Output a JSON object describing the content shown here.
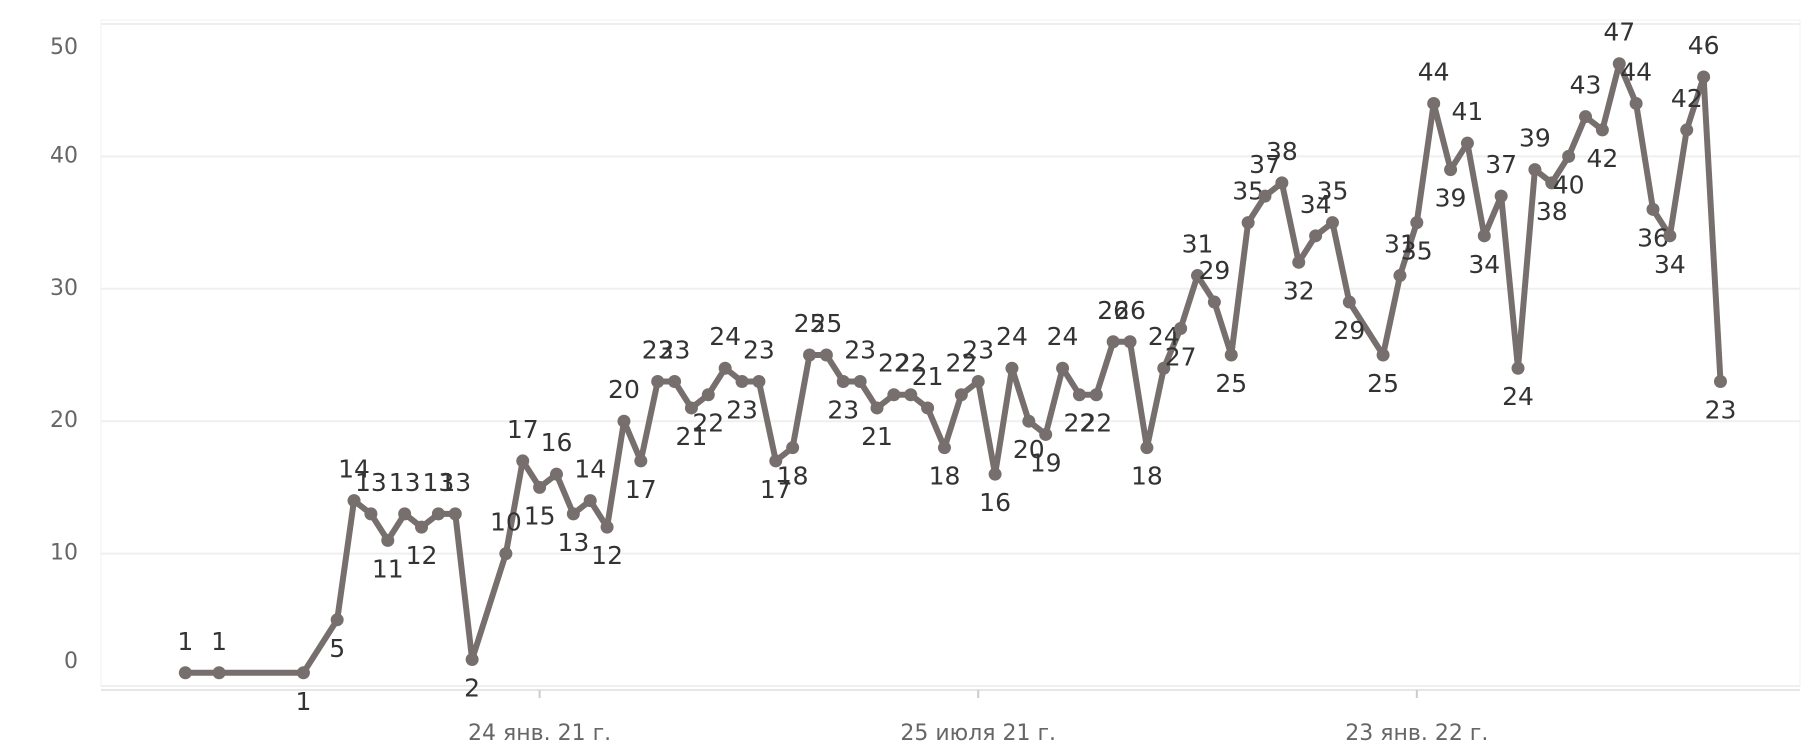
{
  "chart_data": {
    "type": "line",
    "x": [
      "2020-08-30",
      "2020-09-13",
      "2020-10-18",
      "2020-11-01",
      "2020-11-08",
      "2020-11-15",
      "2020-11-22",
      "2020-11-29",
      "2020-12-06",
      "2020-12-13",
      "2020-12-20",
      "2020-12-27",
      "2021-01-10",
      "2021-01-17",
      "2021-01-24",
      "2021-01-31",
      "2021-02-07",
      "2021-02-14",
      "2021-02-21",
      "2021-02-28",
      "2021-03-07",
      "2021-03-14",
      "2021-03-21",
      "2021-03-28",
      "2021-04-04",
      "2021-04-11",
      "2021-04-18",
      "2021-04-25",
      "2021-05-02",
      "2021-05-09",
      "2021-05-16",
      "2021-05-23",
      "2021-05-30",
      "2021-06-06",
      "2021-06-13",
      "2021-06-20",
      "2021-06-27",
      "2021-07-04",
      "2021-07-11",
      "2021-07-18",
      "2021-07-25",
      "2021-08-01",
      "2021-08-08",
      "2021-08-15",
      "2021-08-22",
      "2021-08-29",
      "2021-09-05",
      "2021-09-12",
      "2021-09-19",
      "2021-09-26",
      "2021-10-03",
      "2021-10-10",
      "2021-10-17",
      "2021-10-24",
      "2021-10-31",
      "2021-11-07",
      "2021-11-14",
      "2021-11-21",
      "2021-11-28",
      "2021-12-05",
      "2021-12-12",
      "2021-12-19",
      "2021-12-26",
      "2022-01-09",
      "2022-01-16",
      "2022-01-23",
      "2022-01-30",
      "2022-02-06",
      "2022-02-13",
      "2022-02-20",
      "2022-02-27",
      "2022-03-06",
      "2022-03-13",
      "2022-03-20",
      "2022-03-27",
      "2022-04-03",
      "2022-04-10",
      "2022-04-17",
      "2022-04-24",
      "2022-05-01",
      "2022-05-08",
      "2022-05-15",
      "2022-05-22",
      "2022-05-29"
    ],
    "series": [
      {
        "color": "#776f6d",
        "values": [
          1,
          1,
          1,
          5,
          14,
          13,
          11,
          13,
          12,
          13,
          13,
          2,
          10,
          17,
          15,
          16,
          13,
          14,
          12,
          20,
          17,
          23,
          23,
          21,
          22,
          24,
          23,
          23,
          17,
          18,
          25,
          25,
          23,
          23,
          21,
          22,
          22,
          21,
          18,
          22,
          23,
          16,
          24,
          20,
          19,
          24,
          22,
          22,
          26,
          26,
          18,
          24,
          27,
          31,
          29,
          25,
          35,
          37,
          38,
          32,
          34,
          35,
          29,
          25,
          31,
          35,
          44,
          39,
          41,
          34,
          37,
          24,
          39,
          38,
          40,
          43,
          42,
          47,
          44,
          36,
          34,
          42,
          46,
          23
        ]
      }
    ],
    "xlim": [
      "2020-07-26",
      "2022-07-01"
    ],
    "xticks": [
      {
        "value": "2021-01-24",
        "label": "24 янв. 21 г."
      },
      {
        "value": "2021-07-25",
        "label": "25 июля 21 г."
      },
      {
        "value": "2022-01-23",
        "label": "23 янв. 22 г."
      }
    ],
    "ylim": [
      0,
      50
    ],
    "yticks": [
      0,
      10,
      20,
      30,
      40,
      50
    ],
    "grid": true
  }
}
